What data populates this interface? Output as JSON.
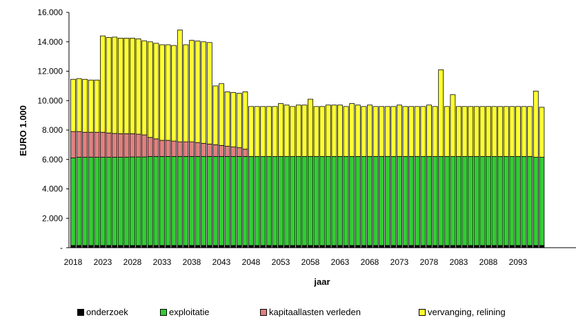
{
  "chart_data": {
    "type": "bar",
    "stacked": true,
    "xlabel": "jaar",
    "ylabel": "EURO 1.000",
    "ylim": [
      0,
      16000
    ],
    "y_ticks": [
      "-",
      "2.000",
      "4.000",
      "6.000",
      "8.000",
      "10.000",
      "12.000",
      "14.000",
      "16.000"
    ],
    "x_tick_labels": [
      "2018",
      "2023",
      "2028",
      "2033",
      "2038",
      "2043",
      "2048",
      "2053",
      "2058",
      "2063",
      "2068",
      "2073",
      "2078",
      "2083",
      "2088",
      "2093"
    ],
    "grid": false,
    "legend_position": "bottom",
    "categories": [
      2018,
      2019,
      2020,
      2021,
      2022,
      2023,
      2024,
      2025,
      2026,
      2027,
      2028,
      2029,
      2030,
      2031,
      2032,
      2033,
      2034,
      2035,
      2036,
      2037,
      2038,
      2039,
      2040,
      2041,
      2042,
      2043,
      2044,
      2045,
      2046,
      2047,
      2048,
      2049,
      2050,
      2051,
      2052,
      2053,
      2054,
      2055,
      2056,
      2057,
      2058,
      2059,
      2060,
      2061,
      2062,
      2063,
      2064,
      2065,
      2066,
      2067,
      2068,
      2069,
      2070,
      2071,
      2072,
      2073,
      2074,
      2075,
      2076,
      2077,
      2078,
      2079,
      2080,
      2081,
      2082,
      2083,
      2084,
      2085,
      2086,
      2087,
      2088,
      2089,
      2090,
      2091,
      2092,
      2093,
      2094,
      2095,
      2096,
      2097
    ],
    "series": [
      {
        "name": "onderzoek",
        "color": "#000000",
        "values": [
          150,
          150,
          150,
          150,
          150,
          150,
          150,
          150,
          150,
          150,
          150,
          150,
          150,
          150,
          150,
          150,
          150,
          150,
          150,
          150,
          150,
          150,
          150,
          150,
          150,
          150,
          150,
          150,
          150,
          150,
          150,
          150,
          150,
          150,
          150,
          150,
          150,
          150,
          150,
          150,
          150,
          150,
          150,
          150,
          150,
          150,
          150,
          150,
          150,
          150,
          150,
          150,
          150,
          150,
          150,
          150,
          150,
          150,
          150,
          150,
          150,
          150,
          150,
          150,
          150,
          150,
          150,
          150,
          150,
          150,
          150,
          150,
          150,
          150,
          150,
          150,
          150,
          150,
          150,
          150
        ]
      },
      {
        "name": "exploitatie",
        "color": "#33cc33",
        "values": [
          5950,
          6000,
          6000,
          6000,
          6000,
          6000,
          6000,
          6000,
          6000,
          6000,
          6020,
          6020,
          6020,
          6050,
          6050,
          6050,
          6050,
          6050,
          6050,
          6050,
          6050,
          6050,
          6050,
          6050,
          6050,
          6050,
          6050,
          6050,
          6050,
          6050,
          6050,
          6050,
          6050,
          6050,
          6050,
          6050,
          6050,
          6050,
          6050,
          6050,
          6050,
          6050,
          6050,
          6050,
          6050,
          6050,
          6050,
          6050,
          6050,
          6050,
          6050,
          6050,
          6050,
          6050,
          6050,
          6050,
          6050,
          6050,
          6050,
          6050,
          6050,
          6050,
          6050,
          6050,
          6050,
          6050,
          6050,
          6050,
          6050,
          6050,
          6050,
          6050,
          6050,
          6050,
          6050,
          6050,
          6050,
          6050,
          6000,
          6000
        ]
      },
      {
        "name": "kapitaallasten verleden",
        "color": "#e08080",
        "values": [
          1800,
          1750,
          1700,
          1700,
          1700,
          1700,
          1650,
          1620,
          1600,
          1600,
          1580,
          1550,
          1500,
          1300,
          1200,
          1100,
          1100,
          1050,
          1000,
          1000,
          1000,
          950,
          900,
          850,
          800,
          750,
          700,
          650,
          600,
          500,
          0,
          0,
          0,
          0,
          0,
          0,
          0,
          0,
          0,
          0,
          0,
          0,
          0,
          0,
          0,
          0,
          0,
          0,
          0,
          0,
          0,
          0,
          0,
          0,
          0,
          0,
          0,
          0,
          0,
          0,
          0,
          0,
          0,
          0,
          0,
          0,
          0,
          0,
          0,
          0,
          0,
          0,
          0,
          0,
          0,
          0,
          0,
          0,
          0,
          0
        ]
      },
      {
        "name": "vervanging, relining",
        "color": "#ffff33",
        "values": [
          3550,
          3600,
          3600,
          3550,
          3550,
          6550,
          6500,
          6550,
          6500,
          6500,
          6500,
          6480,
          6400,
          6500,
          6500,
          6500,
          6500,
          6500,
          7600,
          6600,
          6900,
          6900,
          6900,
          6900,
          4000,
          4200,
          3700,
          3700,
          3700,
          3900,
          3400,
          3400,
          3400,
          3400,
          3400,
          3600,
          3500,
          3400,
          3500,
          3500,
          3900,
          3400,
          3400,
          3500,
          3500,
          3500,
          3400,
          3600,
          3500,
          3400,
          3500,
          3400,
          3400,
          3400,
          3400,
          3500,
          3400,
          3400,
          3400,
          3400,
          3500,
          3400,
          5900,
          3400,
          4200,
          3400,
          3400,
          3400,
          3400,
          3400,
          3400,
          3400,
          3400,
          3400,
          3400,
          3400,
          3400,
          3400,
          4500,
          3400
        ]
      }
    ]
  }
}
